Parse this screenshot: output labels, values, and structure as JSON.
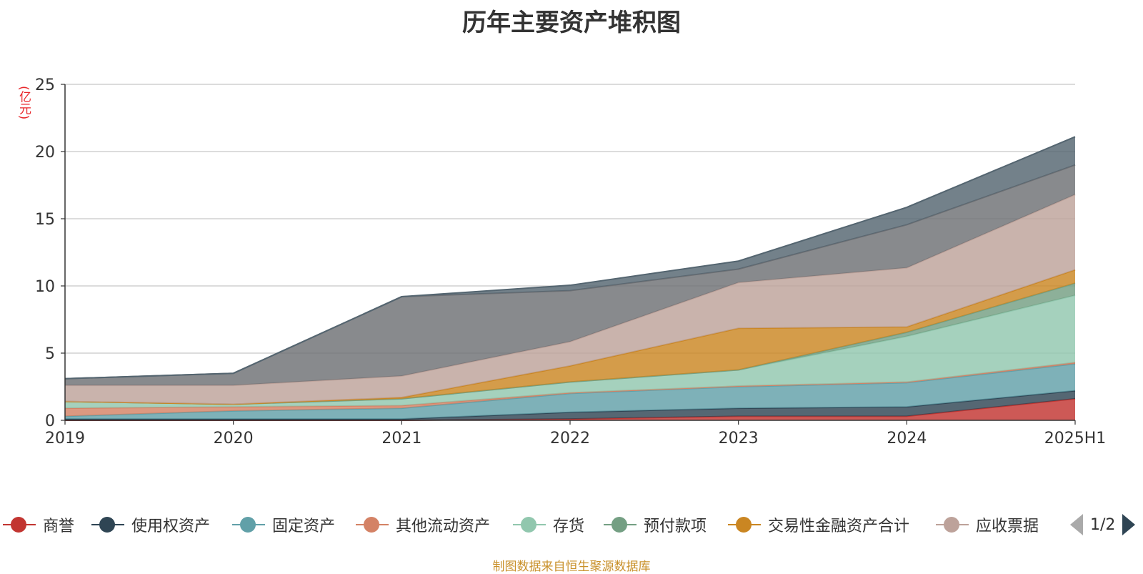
{
  "chart_data": {
    "type": "area",
    "stacked": true,
    "title": "历年主要资产堆积图",
    "ylabel": "(亿元)",
    "xlabel": "",
    "ylim": [
      0,
      25
    ],
    "yticks": [
      "0",
      "5",
      "10",
      "15",
      "20",
      "25"
    ],
    "grid": true,
    "legend_position": "bottom",
    "categories": [
      "2019",
      "2020",
      "2021",
      "2022",
      "2023",
      "2024",
      "2025H1"
    ],
    "series": [
      {
        "name": "商誉",
        "color": "#c23531",
        "values": [
          0,
          0,
          0,
          0.1,
          0.3,
          0.3,
          1.6
        ]
      },
      {
        "name": "使用权资产",
        "color": "#2f4554",
        "values": [
          0.1,
          0.1,
          0.1,
          0.5,
          0.6,
          0.7,
          0.6
        ]
      },
      {
        "name": "固定资产",
        "color": "#61a0a8",
        "values": [
          0.2,
          0.6,
          0.8,
          1.4,
          1.6,
          1.8,
          2.0
        ]
      },
      {
        "name": "其他流动资产",
        "color": "#d48265",
        "values": [
          0.6,
          0.3,
          0.2,
          0.05,
          0.05,
          0.05,
          0.1
        ]
      },
      {
        "name": "存货",
        "color": "#91c7ae",
        "values": [
          0.5,
          0.2,
          0.5,
          0.8,
          1.2,
          3.4,
          5.0
        ]
      },
      {
        "name": "预付款项",
        "color": "#749f83",
        "values": [
          0,
          0,
          0,
          0,
          0,
          0.3,
          0.9
        ]
      },
      {
        "name": "交易性金融资产合计",
        "color": "#ca8622",
        "values": [
          0,
          0,
          0.1,
          1.2,
          3.1,
          0.4,
          1.0
        ]
      },
      {
        "name": "应收票据",
        "color": "#bda29a",
        "values": [
          1.2,
          1.4,
          1.6,
          1.8,
          3.4,
          4.4,
          5.6
        ]
      },
      {
        "name": "",
        "color": "#6e7074",
        "values": [
          0.5,
          0.9,
          5.9,
          3.8,
          1.0,
          3.2,
          2.2
        ]
      },
      {
        "name": "",
        "color": "#546570",
        "values": [
          0,
          0,
          0,
          0.4,
          0.6,
          1.3,
          2.1
        ]
      }
    ]
  },
  "legend": {
    "items": [
      {
        "label": "商誉",
        "color": "#c23531"
      },
      {
        "label": "使用权资产",
        "color": "#2f4554"
      },
      {
        "label": "固定资产",
        "color": "#61a0a8"
      },
      {
        "label": "其他流动资产",
        "color": "#d48265"
      },
      {
        "label": "存货",
        "color": "#91c7ae"
      },
      {
        "label": "预付款项",
        "color": "#749f83"
      },
      {
        "label": "交易性金融资产合计",
        "color": "#ca8622"
      },
      {
        "label": "应收票据",
        "color": "#bda29a"
      }
    ],
    "pager": "1/2"
  },
  "footer": {
    "source": "制图数据来自恒生聚源数据库"
  }
}
